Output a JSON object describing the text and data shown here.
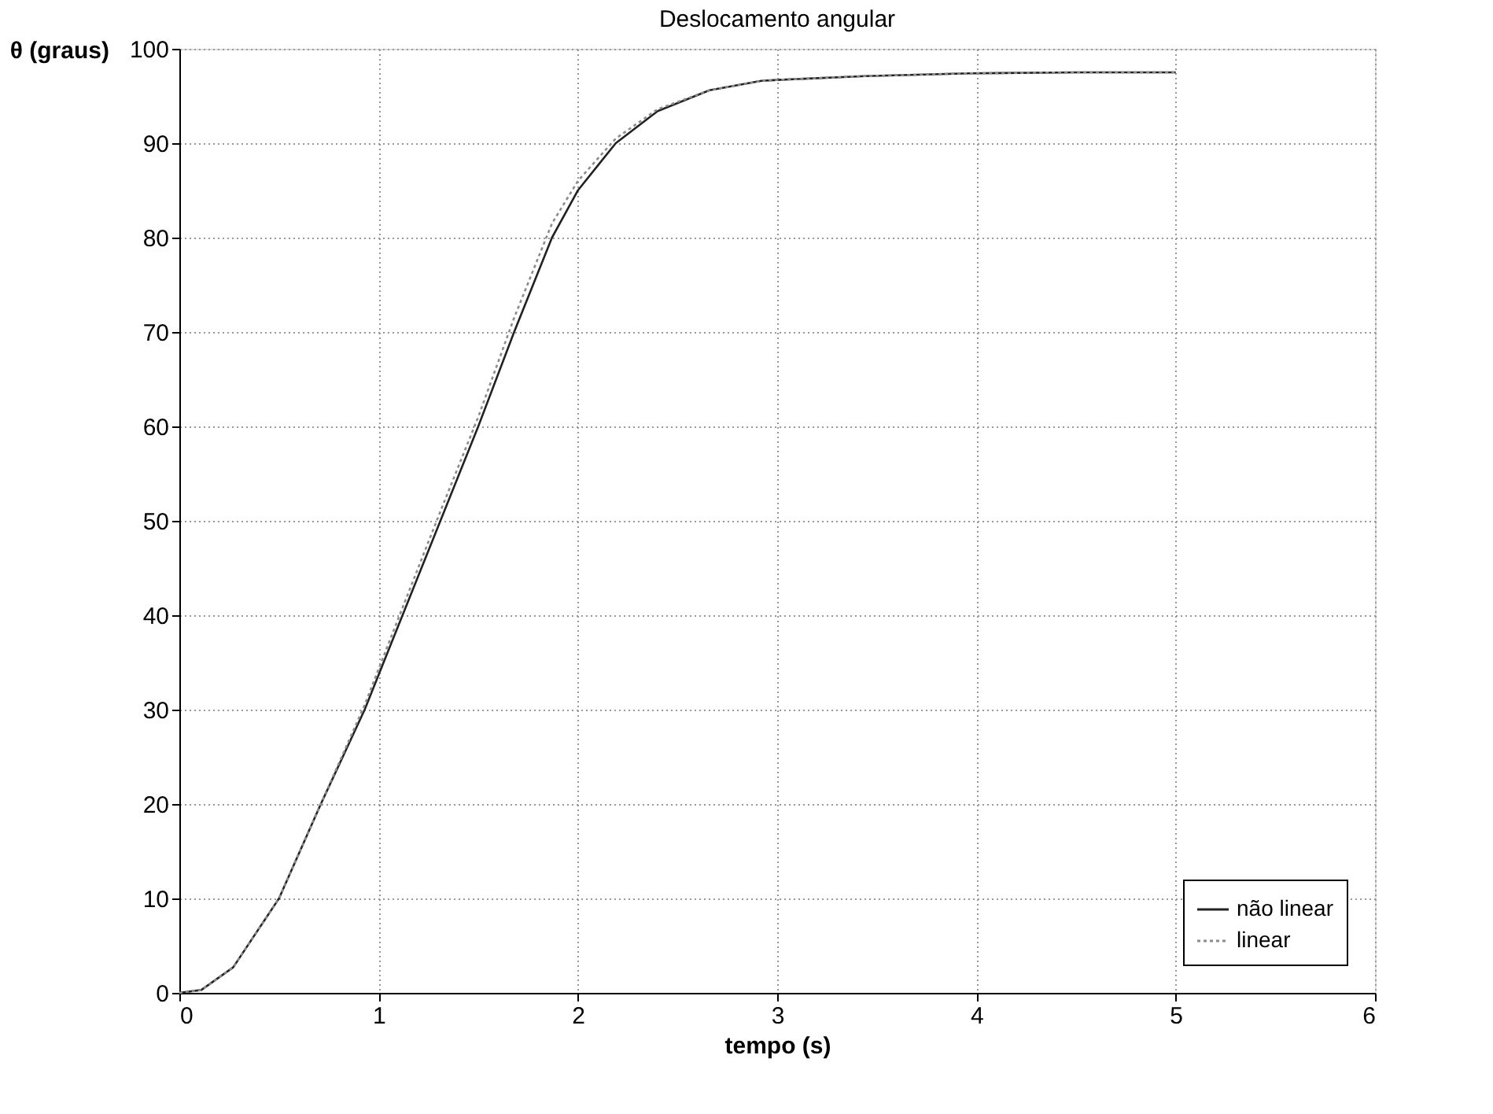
{
  "chart_data": {
    "type": "line",
    "title": "Deslocamento angular",
    "xlabel": "tempo (s)",
    "ylabel": "θ (graus)",
    "xlim": [
      0,
      6
    ],
    "xticks": [
      0,
      1,
      2,
      3,
      4,
      5,
      6
    ],
    "ylim": [
      0,
      100
    ],
    "yticks": [
      0,
      10,
      20,
      30,
      40,
      50,
      60,
      70,
      80,
      90,
      100
    ],
    "grid": true,
    "legend": "bottom right",
    "marker": "none",
    "series": [
      {
        "name": "não linear",
        "color": "#222222",
        "line_style": "solid",
        "x": [
          0,
          0.11,
          0.27,
          0.5,
          0.71,
          0.93,
          1.12,
          1.31,
          1.5,
          1.68,
          1.87,
          2.0,
          2.19,
          2.4,
          2.66,
          2.92,
          3.0,
          3.44,
          3.96,
          4.5,
          5.0
        ],
        "values": [
          0,
          0.3,
          2.7,
          10,
          20,
          30,
          40,
          50,
          60,
          70,
          80,
          85,
          90,
          93.4,
          95.6,
          96.6,
          96.7,
          97.1,
          97.4,
          97.5,
          97.5
        ]
      },
      {
        "name": "linear",
        "color": "#8c8c8c",
        "line_style": "dotted",
        "x": [
          0,
          0.11,
          0.27,
          0.5,
          0.71,
          0.93,
          1.12,
          1.31,
          1.5,
          1.68,
          1.87,
          2.0,
          2.19,
          2.4,
          2.66,
          2.92,
          3.0,
          3.44,
          3.96,
          4.5,
          5.0
        ],
        "values": [
          0,
          0.3,
          2.7,
          10,
          20,
          30.5,
          40.8,
          51,
          61,
          71.5,
          81.5,
          86,
          90.5,
          93.6,
          95.6,
          96.6,
          96.7,
          97.1,
          97.4,
          97.5,
          97.5
        ]
      }
    ]
  }
}
